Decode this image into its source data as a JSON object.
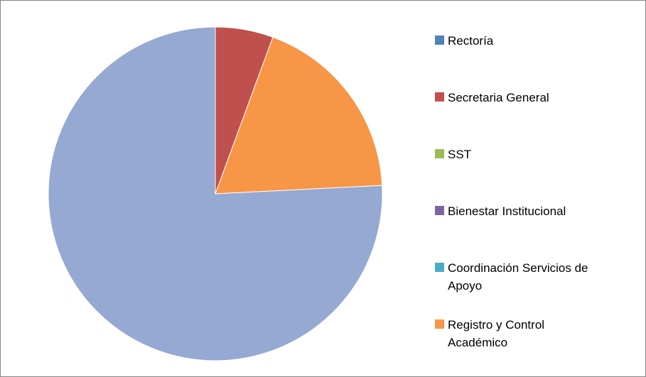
{
  "chart_data": {
    "type": "pie",
    "categories": [
      "Rectoría",
      "Secretaria General",
      "SST",
      "Bienestar Institucional",
      "Coordinación Servicios de Apoyo",
      "Registro y Control Académico",
      null
    ],
    "values": [
      0,
      5.6,
      0,
      0,
      0,
      18.6,
      75.8
    ],
    "colors": [
      "#4f81bd",
      "#c0504d",
      "#9bbb59",
      "#8064a2",
      "#4bacc6",
      "#f79646",
      "#95a9d3"
    ],
    "legend": "right"
  }
}
